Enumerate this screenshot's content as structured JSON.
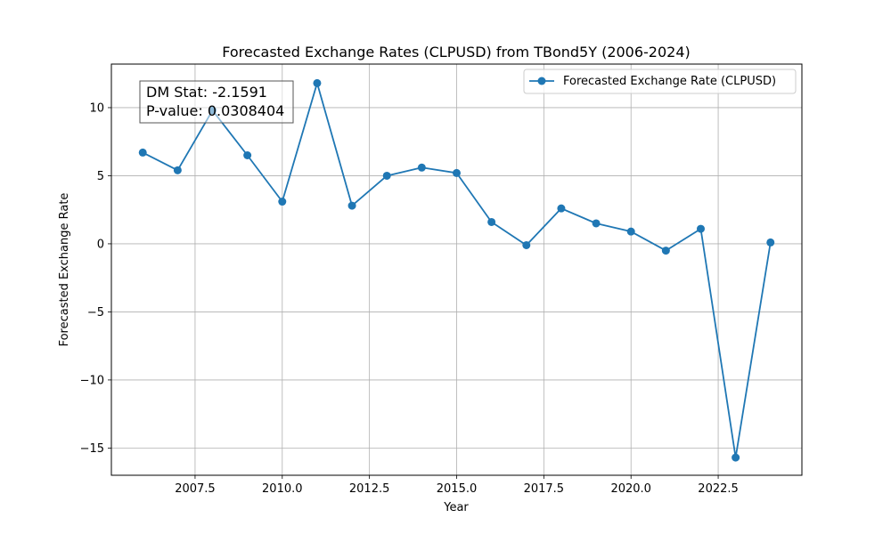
{
  "chart_data": {
    "type": "line",
    "title": "Forecasted Exchange Rates (CLPUSD) from TBond5Y (2006-2024)",
    "xlabel": "Year",
    "ylabel": "Forecasted Exchange Rate",
    "xlim": [
      2005.1,
      2024.9
    ],
    "ylim": [
      -17,
      13.2
    ],
    "x_ticks": [
      2007.5,
      2010.0,
      2012.5,
      2015.0,
      2017.5,
      2020.0,
      2022.5
    ],
    "x_tick_labels": [
      "2007.5",
      "2010.0",
      "2012.5",
      "2015.0",
      "2017.5",
      "2020.0",
      "2022.5"
    ],
    "y_ticks": [
      -15,
      -10,
      -5,
      0,
      5,
      10
    ],
    "y_tick_labels": [
      "−15",
      "−10",
      "−5",
      "0",
      "5",
      "10"
    ],
    "grid": true,
    "legend_position": "top-right",
    "color": "#1f77b4",
    "series": [
      {
        "name": "Forecasted Exchange Rate (CLPUSD)",
        "x": [
          2006,
          2007,
          2008,
          2009,
          2010,
          2011,
          2012,
          2013,
          2014,
          2015,
          2016,
          2017,
          2018,
          2019,
          2020,
          2021,
          2022,
          2023,
          2024
        ],
        "y": [
          6.7,
          5.4,
          9.8,
          6.5,
          3.1,
          11.8,
          2.8,
          5.0,
          5.6,
          5.2,
          1.6,
          -0.1,
          2.6,
          1.5,
          0.9,
          -0.5,
          1.1,
          -15.7,
          0.1
        ]
      }
    ],
    "annotation": {
      "line1": "DM Stat: -2.1591",
      "line2": "P-value: 0.0308404"
    }
  }
}
